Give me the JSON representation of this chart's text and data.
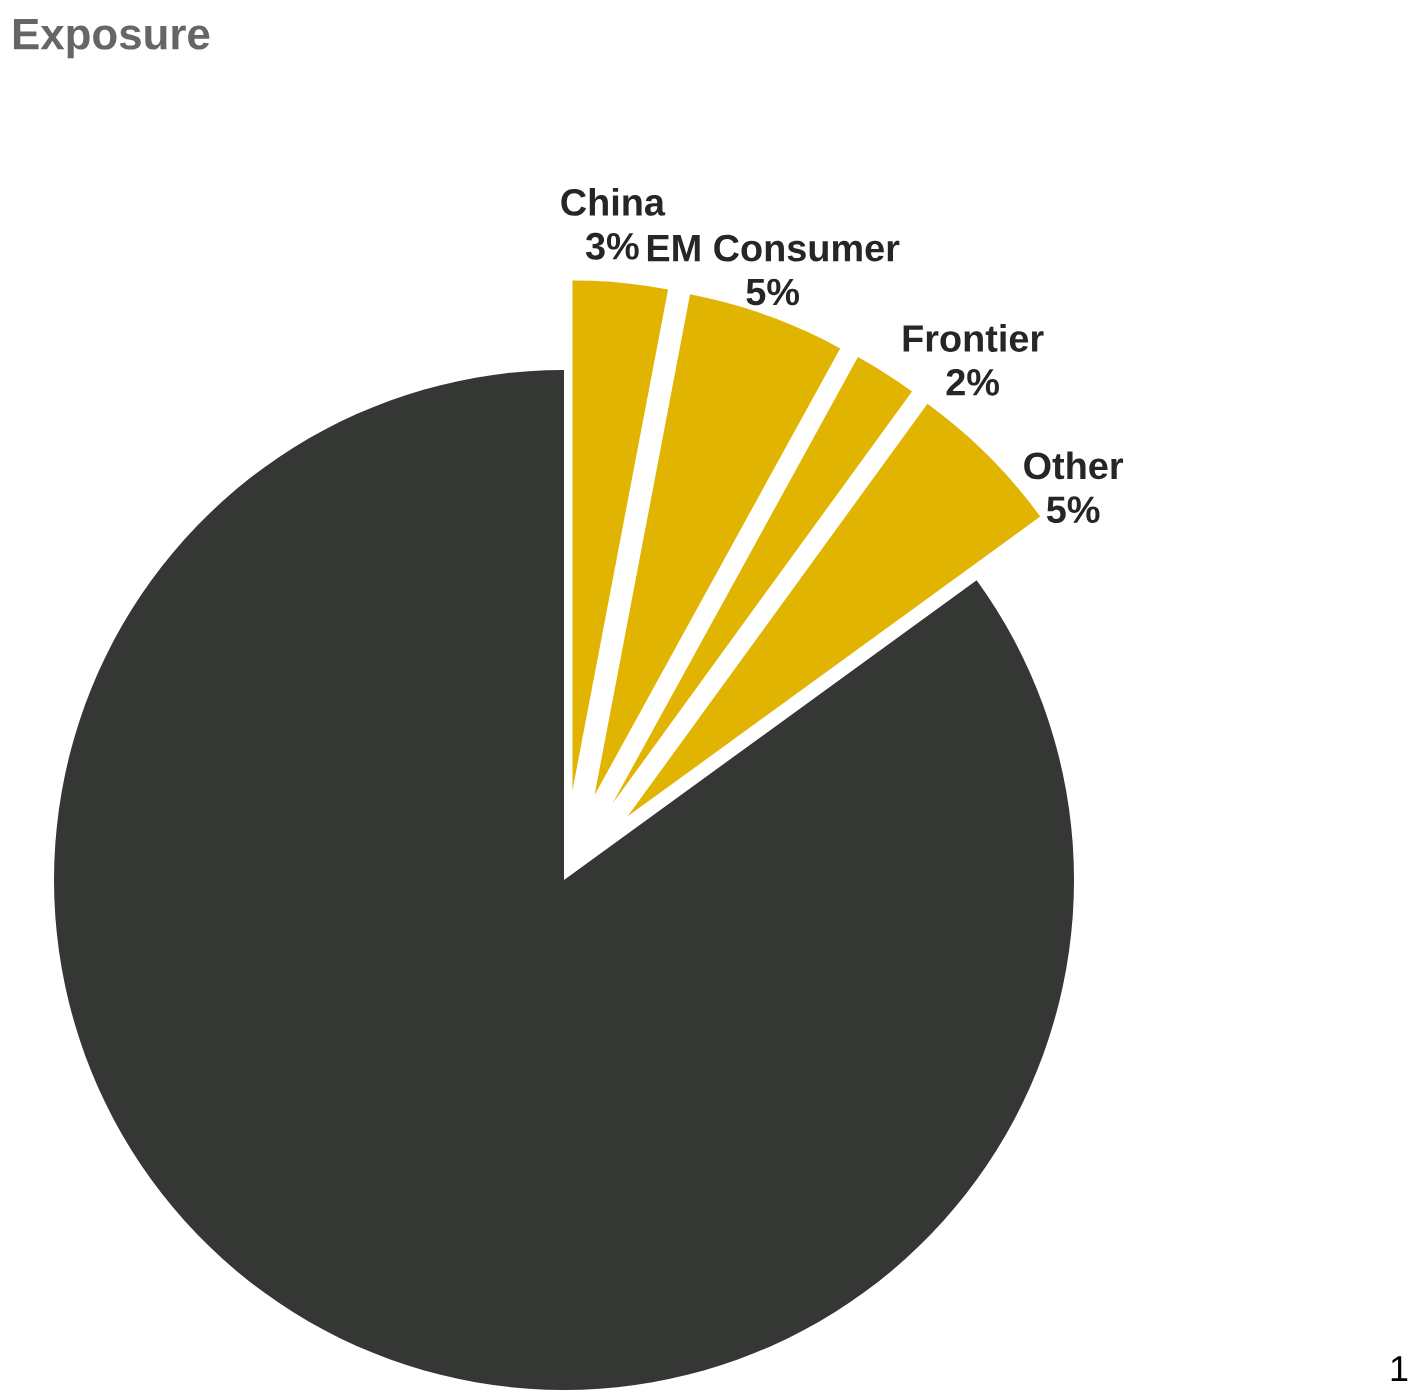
{
  "chart_data": {
    "type": "pie",
    "title": "Exposure",
    "categories": [
      "China",
      "EM Consumer",
      "Frontier",
      "Other",
      null
    ],
    "values": [
      3,
      5,
      2,
      5,
      85
    ],
    "colors": [
      "#e0b400",
      "#e0b400",
      "#e0b400",
      "#e0b400",
      "#353735"
    ],
    "value_labels": [
      "3%",
      "5%",
      "2%",
      "5%",
      null
    ],
    "annotations": [
      "1"
    ]
  }
}
